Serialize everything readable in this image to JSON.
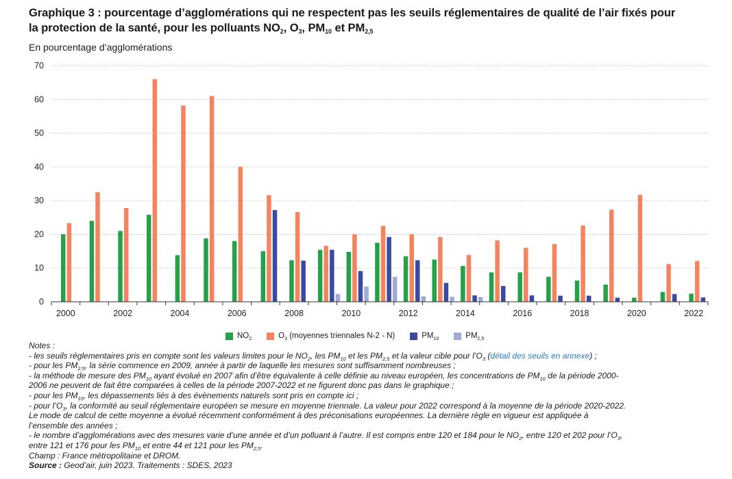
{
  "title": {
    "line1": "Graphique 3 : pourcentage d’agglomérations qui ne respectent pas les seuils réglementaires de qualité de l’air fixés pour",
    "line2_prefix": "la protection de la santé, pour les polluants NO",
    "sub_no2": "2",
    "comma1": ", O",
    "sub_o3": "3",
    "comma2": ", PM",
    "sub_pm10": "10",
    "and": " et PM",
    "sub_pm25": "2,5"
  },
  "subtitle": "En pourcentage d’agglomérations",
  "colors": {
    "no2": "#27a04a",
    "o3": "#f4845f",
    "pm10": "#3a4aa0",
    "pm25": "#a2a8d8",
    "grid": "#b9b9b9",
    "axis": "#333333"
  },
  "legend": [
    {
      "key": "no2",
      "base": "NO",
      "sub": "2",
      "rest": ""
    },
    {
      "key": "o3",
      "base": "O",
      "sub": "3",
      "rest": " (moyennes triennales N-2 - N)"
    },
    {
      "key": "pm10",
      "base": "PM",
      "sub": "10",
      "rest": ""
    },
    {
      "key": "pm25",
      "base": "PM",
      "sub": "2,5",
      "rest": ""
    }
  ],
  "chart_data": {
    "type": "bar",
    "categories": [
      "2000",
      "2001",
      "2002",
      "2003",
      "2004",
      "2005",
      "2006",
      "2007",
      "2008",
      "2009",
      "2010",
      "2011",
      "2012",
      "2013",
      "2014",
      "2015",
      "2016",
      "2017",
      "2018",
      "2019",
      "2020",
      "2021",
      "2022"
    ],
    "x_tick_labels": [
      "2000",
      "2002",
      "2004",
      "2006",
      "2008",
      "2010",
      "2012",
      "2014",
      "2016",
      "2018",
      "2020",
      "2022"
    ],
    "y_tick_labels": [
      "0",
      "10",
      "20",
      "30",
      "40",
      "50",
      "60",
      "70"
    ],
    "ylim": [
      0,
      70
    ],
    "grid": "horizontal dashed",
    "legend_position": "bottom",
    "series": [
      {
        "key": "no2",
        "name": "NO2",
        "values": [
          20,
          24,
          21,
          25.8,
          13.8,
          18.8,
          18,
          15,
          12.3,
          15.4,
          14.8,
          17.5,
          13.5,
          12.5,
          10.6,
          8.7,
          8.7,
          7.4,
          6.3,
          5.1,
          1.2,
          2.9,
          2.4
        ]
      },
      {
        "key": "o3",
        "name": "O3 (moyennes triennales N-2 - N)",
        "values": [
          23.3,
          32.5,
          27.8,
          66,
          58.2,
          61,
          40,
          31.6,
          26.6,
          16.6,
          20,
          22.5,
          20,
          19.2,
          13.9,
          18.2,
          16,
          17.1,
          22.6,
          27.3,
          31.7,
          11.2,
          12.1
        ]
      },
      {
        "key": "pm10",
        "name": "PM10",
        "values": [
          null,
          null,
          null,
          null,
          null,
          null,
          null,
          27.2,
          12.2,
          15.4,
          9.1,
          19.2,
          12.3,
          5.6,
          1.9,
          4.7,
          1.9,
          1.8,
          1.8,
          1.2,
          null,
          2.3,
          1.3
        ]
      },
      {
        "key": "pm25",
        "name": "PM2,5",
        "values": [
          null,
          null,
          null,
          null,
          null,
          null,
          null,
          null,
          null,
          2.3,
          4.5,
          7.4,
          1.6,
          1.5,
          1.4,
          null,
          null,
          null,
          null,
          null,
          null,
          null,
          null
        ]
      }
    ]
  },
  "notes": {
    "heading": "Notes :",
    "n1_a": "- les seuils réglementaires pris en compte sont les valeurs limites pour le NO",
    "n1_b": ", les PM",
    "n1_c": " et les PM",
    "n1_d": " et la valeur cible pour l’O",
    "n1_e": " (",
    "n1_link": "détail des seuils en annexe",
    "n1_f": ") ;",
    "n2_a": "- pour les PM",
    "n2_b": ", la série commence en 2009, année à partir de laquelle les mesures sont suffisamment nombreuses ;",
    "n3_a": "- la méthode de mesure des PM",
    "n3_b": " ayant évolué en 2007 afin d’être équivalente à celle définie au niveau européen, les concentrations de PM",
    "n3_c": " de la période 2000-",
    "n3_line2": "2006 ne peuvent de fait être comparées à celles de la période 2007-2022 et ne figurent donc pas dans le graphique ;",
    "n4_a": "- pour les PM",
    "n4_b": ", les dépassements liés à des évènements naturels sont pris en compte ici ;",
    "n5_a": "- pour l’O",
    "n5_b": ", la conformité au seuil réglementaire européen se mesure en moyenne triennale. La valeur pour 2022 correspond à la moyenne de la période 2020-2022.",
    "n5_line2": "Le mode de calcul de cette moyenne a évolué récemment conformément à des préconisations européennes. La dernière règle en vigueur est appliquée à",
    "n5_line3": "l’ensemble des années ;",
    "n6_a": "- le nombre d’agglomérations avec des mesures varie d’une année et d’un polluant à l’autre. Il est compris entre 120 et 184 pour le NO",
    "n6_b": ", entre 120 et 202 pour l’O",
    "n6_c": ",",
    "n6_line2_a": "entre 121 et 176 pour les PM",
    "n6_line2_b": " et entre 44 et 121 pour les PM",
    "n6_line2_c": ".",
    "champ": "Champ : France métropolitaine et DROM.",
    "source_label": "Source :",
    "source_text": " Geod’air, juin 2023. Traitements : SDES, 2023",
    "sub_2": "2",
    "sub_3": "3",
    "sub_10": "10",
    "sub_25": "2,5"
  }
}
